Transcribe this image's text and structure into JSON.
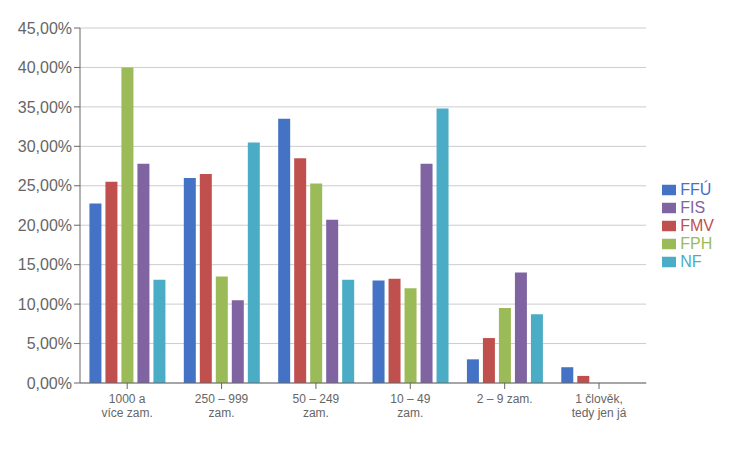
{
  "chart_data": {
    "type": "bar",
    "categories": [
      "1000 a\nvíce zam.",
      "250 – 999\nzam.",
      "50 – 249\nzam.",
      "10 – 49\nzam.",
      "2 – 9 zam.",
      "1 člověk,\ntedy jen já"
    ],
    "series": [
      {
        "name": "FFÚ",
        "color": "#4472C4",
        "values": [
          0.2275,
          0.26,
          0.335,
          0.13,
          0.03,
          0.02
        ]
      },
      {
        "name": "FMV",
        "color": "#C0504D",
        "values": [
          0.255,
          0.265,
          0.285,
          0.132,
          0.057,
          0.009
        ]
      },
      {
        "name": "FPH",
        "color": "#9BBB59",
        "values": [
          0.4,
          0.135,
          0.253,
          0.12,
          0.095,
          0.0
        ]
      },
      {
        "name": "FIS",
        "color": "#8064A2",
        "values": [
          0.278,
          0.105,
          0.207,
          0.278,
          0.14,
          0.0
        ]
      },
      {
        "name": "NF",
        "color": "#4BACC6",
        "values": [
          0.131,
          0.305,
          0.131,
          0.348,
          0.087,
          0.0
        ]
      }
    ],
    "ylim": [
      0,
      0.45
    ],
    "yticks": [
      {
        "value": 0.0,
        "label": "0,00%"
      },
      {
        "value": 0.05,
        "label": "5,00%"
      },
      {
        "value": 0.1,
        "label": "10,00%"
      },
      {
        "value": 0.15,
        "label": "15,00%"
      },
      {
        "value": 0.2,
        "label": "20,00%"
      },
      {
        "value": 0.25,
        "label": "25,00%"
      },
      {
        "value": 0.3,
        "label": "30,00%"
      },
      {
        "value": 0.35,
        "label": "35,00%"
      },
      {
        "value": 0.4,
        "label": "40,00%"
      },
      {
        "value": 0.45,
        "label": "45,00%"
      }
    ],
    "grid": true,
    "legend": "right"
  }
}
